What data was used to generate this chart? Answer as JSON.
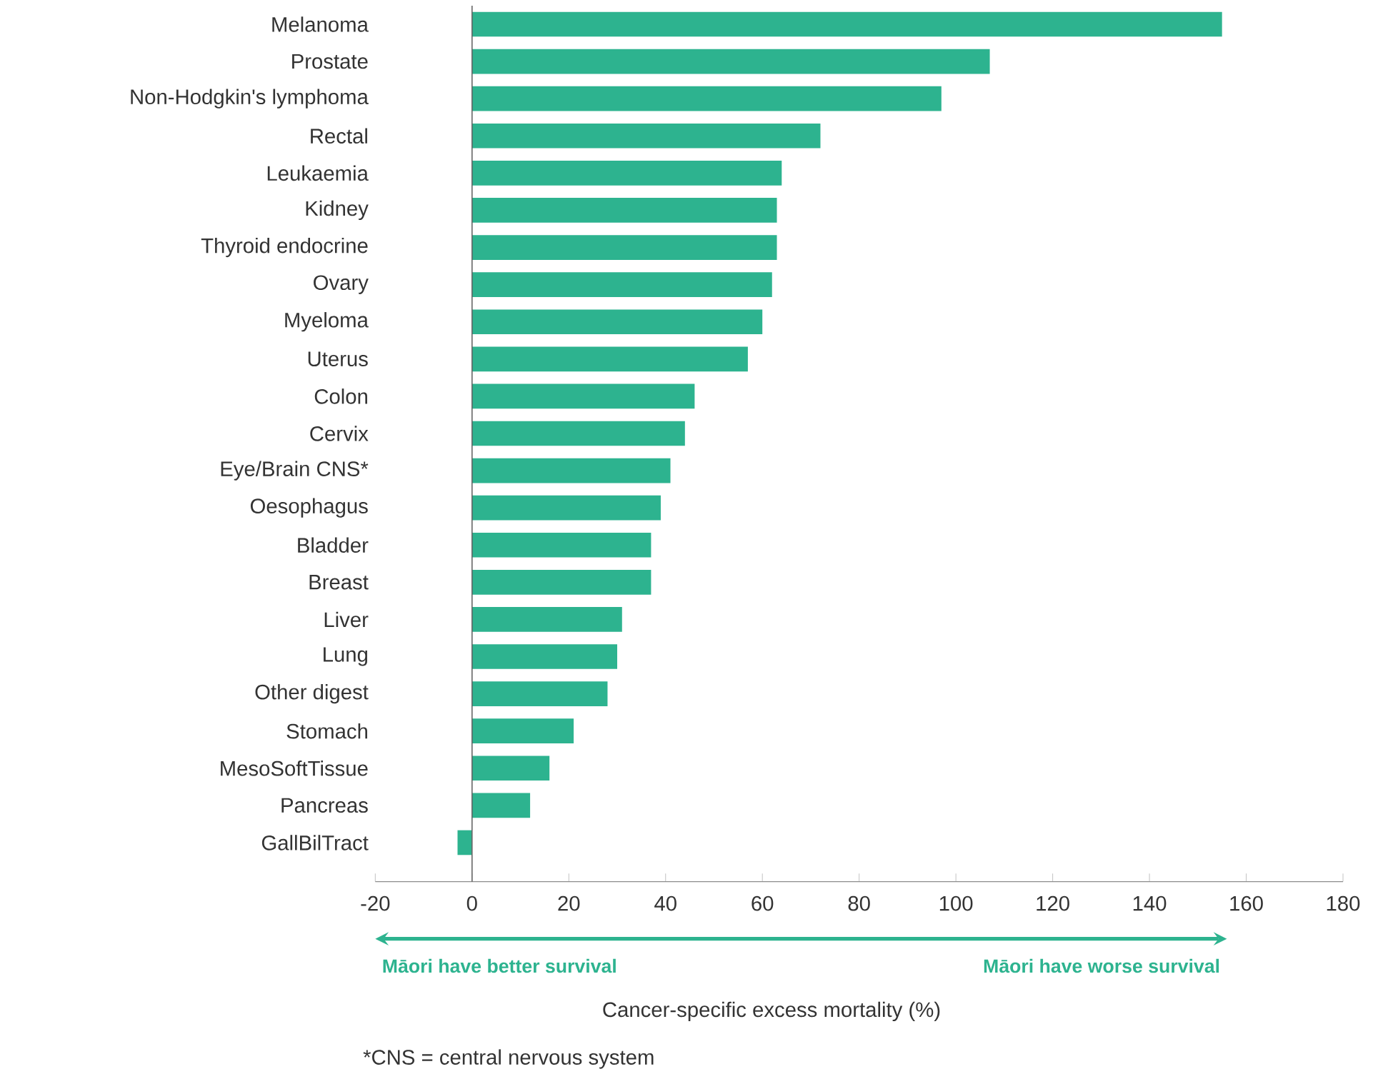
{
  "chart_data": {
    "type": "bar",
    "orientation": "horizontal",
    "xlabel": "Cancer-specific excess mortality (%)",
    "categories": [
      "Melanoma",
      "Prostate",
      "Non-Hodgkin's lymphoma",
      "Rectal",
      "Leukaemia",
      "Kidney",
      "Thyroid endocrine",
      "Ovary",
      "Myeloma",
      "Uterus",
      "Colon",
      "Cervix",
      "Eye/Brain CNS*",
      "Oesophagus",
      "Bladder",
      "Breast",
      "Liver",
      "Lung",
      "Other digest",
      "Stomach",
      "MesoSoftTissue",
      "Pancreas",
      "GallBilTract"
    ],
    "values": [
      155,
      107,
      97,
      72,
      64,
      63,
      63,
      62,
      60,
      57,
      46,
      44,
      41,
      39,
      37,
      37,
      31,
      30,
      28,
      21,
      16,
      12,
      -3
    ],
    "color": "#2db38f",
    "xlim": [
      -20,
      180
    ],
    "xticks": [
      -20,
      0,
      20,
      40,
      60,
      80,
      100,
      120,
      140,
      160,
      180
    ],
    "ref_lines": [
      {
        "axis": "x",
        "value": 0,
        "color": "#666666"
      }
    ],
    "annotations": [
      "Māori have better survival",
      "Māori have worse survival",
      "*CNS = central nervous system"
    ]
  }
}
